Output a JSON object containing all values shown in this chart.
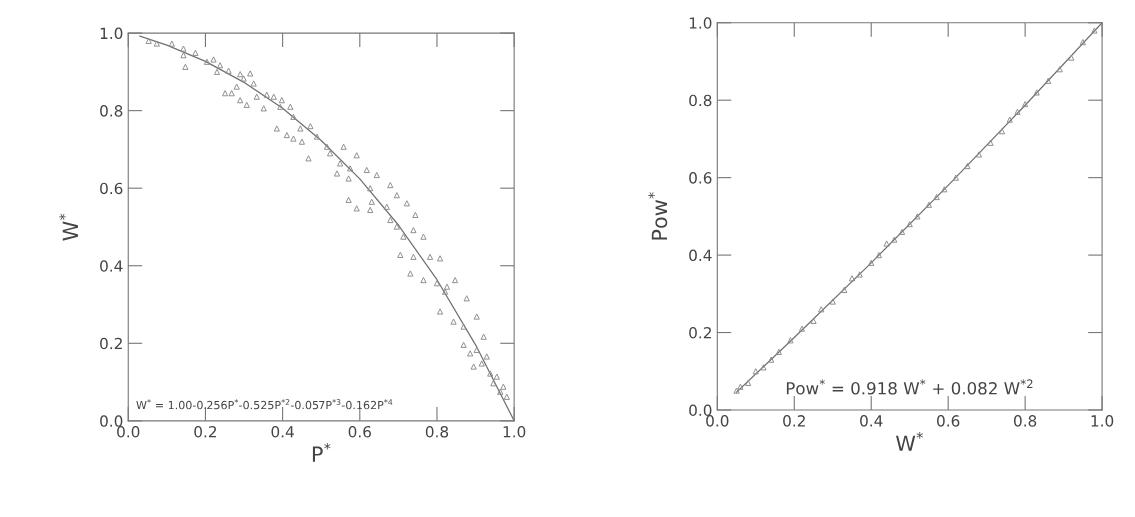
{
  "chart_data": [
    {
      "type": "scatter",
      "xlabel": "P$^{*}$",
      "ylabel": "W$^{*}$",
      "xlim": [
        0,
        1
      ],
      "ylim": [
        0,
        1
      ],
      "xticks": [
        {
          "value": 0,
          "label": "0.0"
        },
        {
          "value": 0.2,
          "label": "0.2"
        },
        {
          "value": 0.4,
          "label": "0.4"
        },
        {
          "value": 0.6,
          "label": "0.6"
        },
        {
          "value": 0.8,
          "label": "0.8"
        },
        {
          "value": 1,
          "label": "1.0"
        }
      ],
      "yticks": [
        {
          "value": 0,
          "label": "0.0"
        },
        {
          "value": 0.2,
          "label": "0.2"
        },
        {
          "value": 0.4,
          "label": "0.4"
        },
        {
          "value": 0.6,
          "label": "0.6"
        },
        {
          "value": 0.8,
          "label": "0.8"
        },
        {
          "value": 1,
          "label": "1.0"
        }
      ],
      "grid": false,
      "annotations": [
        "W$^{*}$ = 1.00-0.256P$^{*}$-0.525P$^{*2}$-0.057P$^{*3}$-0.162P$^{*4}$"
      ],
      "series": [
        {
          "marker": "triangle",
          "color": "#8c8c8c",
          "x": [
            0.053,
            0.074,
            0.113,
            0.143,
            0.143,
            0.148,
            0.174,
            0.204,
            0.221,
            0.238,
            0.23,
            0.26,
            0.29,
            0.299,
            0.316,
            0.325,
            0.281,
            0.251,
            0.268,
            0.29,
            0.307,
            0.333,
            0.351,
            0.359,
            0.377,
            0.398,
            0.394,
            0.42,
            0.428,
            0.446,
            0.472,
            0.385,
            0.411,
            0.428,
            0.45,
            0.489,
            0.515,
            0.523,
            0.467,
            0.558,
            0.592,
            0.549,
            0.575,
            0.541,
            0.571,
            0.618,
            0.644,
            0.627,
            0.679,
            0.696,
            0.571,
            0.592,
            0.631,
            0.627,
            0.67,
            0.722,
            0.744,
            0.679,
            0.696,
            0.713,
            0.739,
            0.765,
            0.705,
            0.739,
            0.782,
            0.808,
            0.731,
            0.765,
            0.8,
            0.826,
            0.847,
            0.821,
            0.808,
            0.843,
            0.869,
            0.877,
            0.903,
            0.921,
            0.869,
            0.886,
            0.903,
            0.929,
            0.895,
            0.916,
            0.938,
            0.955,
            0.946,
            0.972,
            0.964,
            0.981
          ],
          "values": [
            0.98,
            0.973,
            0.973,
            0.96,
            0.943,
            0.913,
            0.949,
            0.926,
            0.932,
            0.917,
            0.9,
            0.903,
            0.894,
            0.883,
            0.896,
            0.87,
            0.862,
            0.845,
            0.845,
            0.827,
            0.815,
            0.836,
            0.806,
            0.841,
            0.836,
            0.827,
            0.81,
            0.81,
            0.784,
            0.754,
            0.76,
            0.754,
            0.737,
            0.728,
            0.72,
            0.733,
            0.707,
            0.69,
            0.677,
            0.707,
            0.685,
            0.664,
            0.651,
            0.638,
            0.625,
            0.647,
            0.634,
            0.6,
            0.608,
            0.582,
            0.57,
            0.548,
            0.565,
            0.544,
            0.552,
            0.561,
            0.531,
            0.518,
            0.501,
            0.475,
            0.492,
            0.475,
            0.428,
            0.423,
            0.423,
            0.419,
            0.38,
            0.363,
            0.355,
            0.346,
            0.363,
            0.333,
            0.282,
            0.256,
            0.243,
            0.316,
            0.269,
            0.217,
            0.196,
            0.174,
            0.183,
            0.166,
            0.14,
            0.148,
            0.122,
            0.114,
            0.097,
            0.088,
            0.075,
            0.062
          ]
        },
        {
          "type": "line",
          "line_style": "solid",
          "color": "#707070",
          "x": [
            0.03,
            0.1,
            0.2,
            0.3,
            0.4,
            0.5,
            0.6,
            0.7,
            0.8,
            0.9,
            1.0
          ],
          "values": [
            0.992,
            0.969,
            0.927,
            0.873,
            0.806,
            0.723,
            0.624,
            0.505,
            0.364,
            0.196,
            0.0
          ]
        }
      ]
    },
    {
      "type": "scatter",
      "xlabel": "W$^{*}$",
      "ylabel": "Pow$^{*}$",
      "xlim": [
        0,
        1
      ],
      "ylim": [
        0,
        1
      ],
      "xticks": [
        {
          "value": 0,
          "label": "0.0"
        },
        {
          "value": 0.2,
          "label": "0.2"
        },
        {
          "value": 0.4,
          "label": "0.4"
        },
        {
          "value": 0.6,
          "label": "0.6"
        },
        {
          "value": 0.8,
          "label": "0.8"
        },
        {
          "value": 1,
          "label": "1.0"
        }
      ],
      "yticks": [
        {
          "value": 0,
          "label": "0.0"
        },
        {
          "value": 0.2,
          "label": "0.2"
        },
        {
          "value": 0.4,
          "label": "0.4"
        },
        {
          "value": 0.6,
          "label": "0.6"
        },
        {
          "value": 0.8,
          "label": "0.8"
        },
        {
          "value": 1,
          "label": "1.0"
        }
      ],
      "grid": false,
      "annotations": [
        "Pow$^{*}$ = 0.918 W$^{*}$ + 0.082 W$^{*2}$"
      ],
      "series": [
        {
          "marker": "triangle",
          "color": "#8c8c8c",
          "x": [
            0.05,
            0.06,
            0.08,
            0.1,
            0.12,
            0.14,
            0.16,
            0.19,
            0.22,
            0.25,
            0.27,
            0.3,
            0.33,
            0.35,
            0.37,
            0.4,
            0.42,
            0.44,
            0.46,
            0.48,
            0.5,
            0.52,
            0.55,
            0.57,
            0.59,
            0.62,
            0.65,
            0.68,
            0.71,
            0.74,
            0.76,
            0.78,
            0.8,
            0.83,
            0.86,
            0.89,
            0.92,
            0.95,
            0.98
          ],
          "values": [
            0.05,
            0.06,
            0.07,
            0.1,
            0.11,
            0.13,
            0.15,
            0.18,
            0.21,
            0.23,
            0.26,
            0.28,
            0.31,
            0.34,
            0.35,
            0.38,
            0.4,
            0.43,
            0.44,
            0.46,
            0.48,
            0.5,
            0.53,
            0.55,
            0.57,
            0.6,
            0.63,
            0.66,
            0.69,
            0.72,
            0.75,
            0.77,
            0.79,
            0.82,
            0.85,
            0.88,
            0.91,
            0.95,
            0.98
          ]
        },
        {
          "type": "line",
          "line_style": "solid",
          "color": "#707070",
          "x": [
            0.05,
            0.2,
            0.4,
            0.6,
            0.8,
            1.0
          ],
          "values": [
            0.046,
            0.187,
            0.38,
            0.58,
            0.787,
            1.0
          ]
        }
      ]
    }
  ]
}
